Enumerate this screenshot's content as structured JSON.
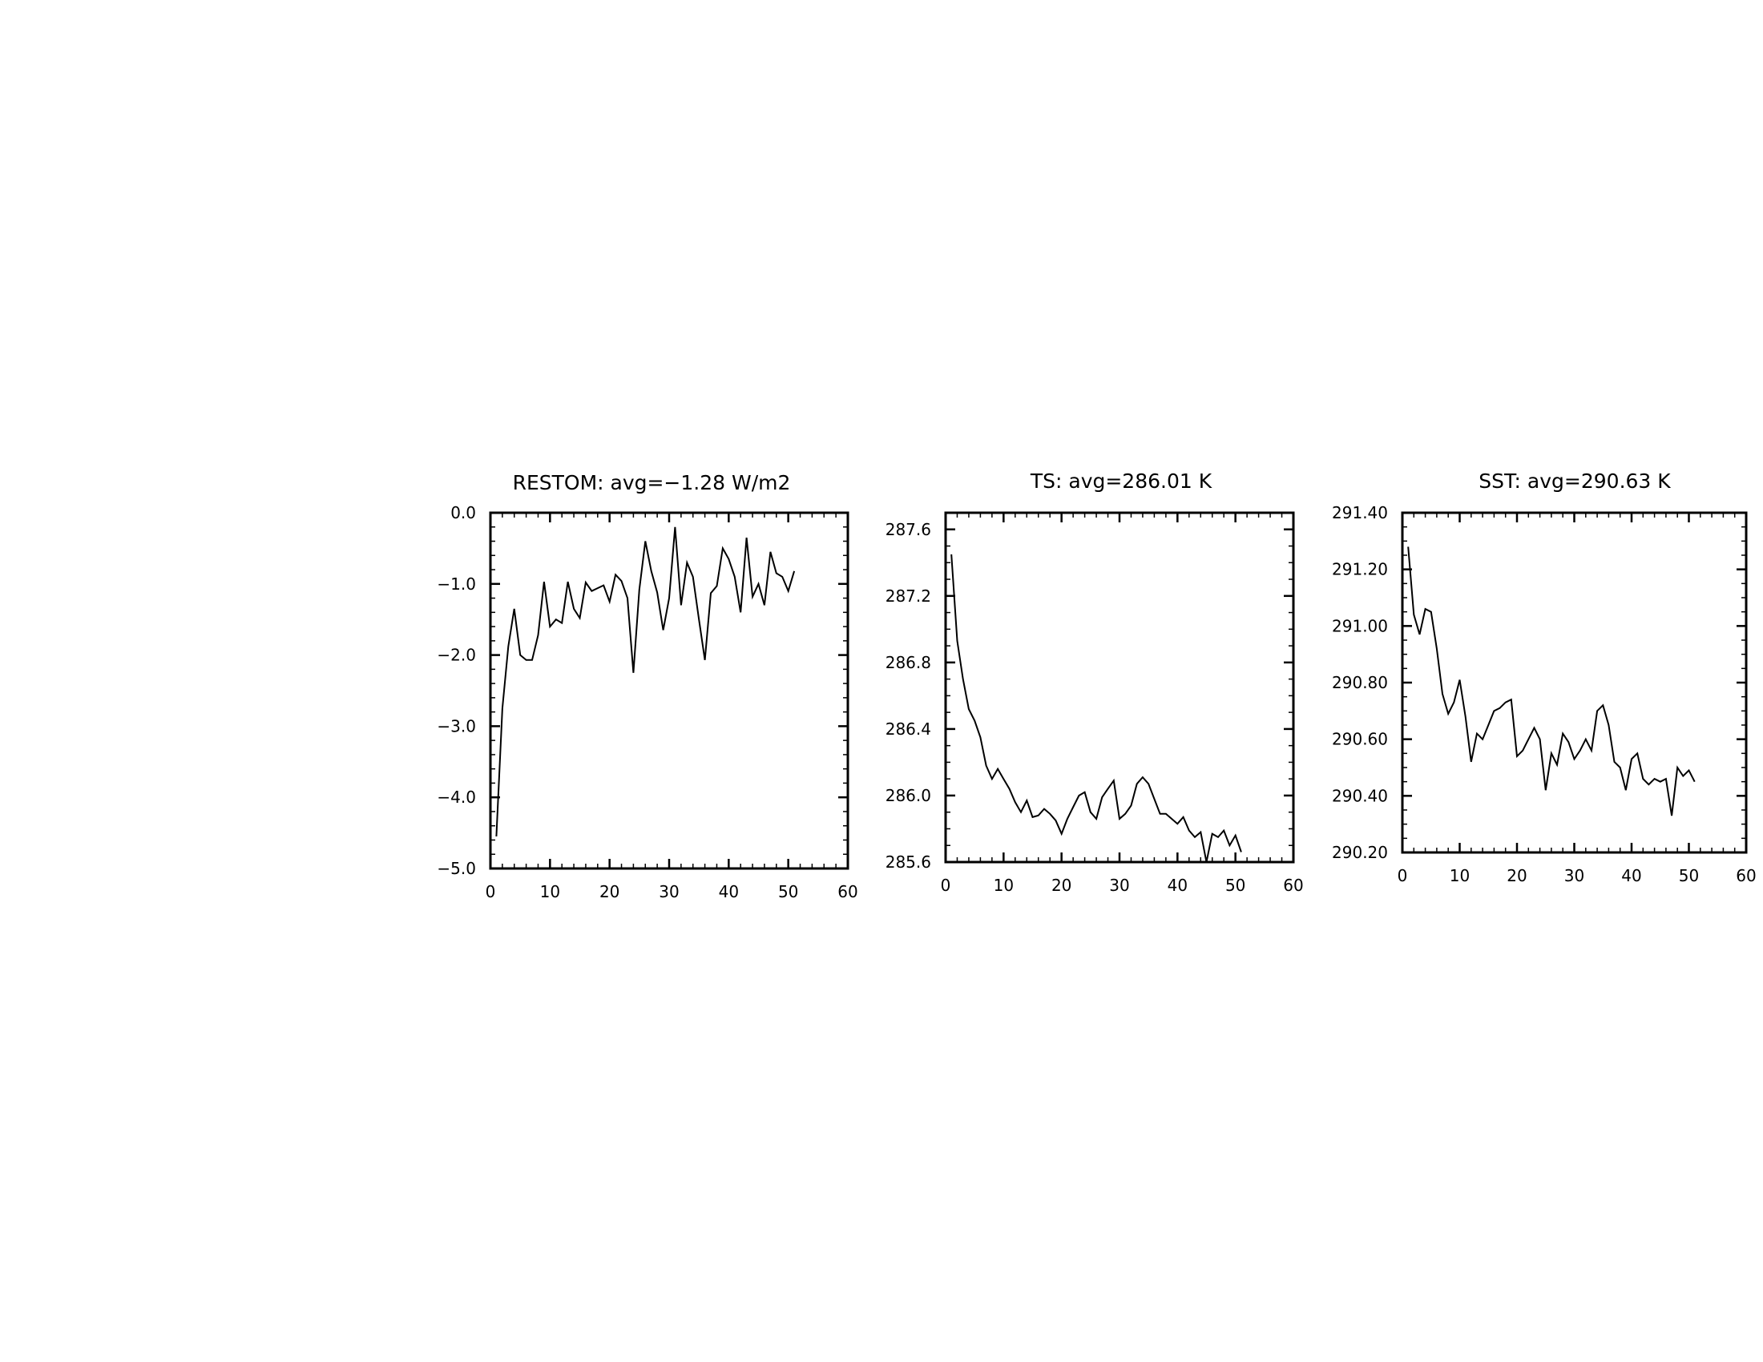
{
  "chart_data": [
    {
      "type": "line",
      "title": "RESTOM: avg=−1.28 W/m2",
      "xlabel": "",
      "ylabel": "",
      "xlim": [
        0,
        60
      ],
      "ylim": [
        -5.0,
        0.0
      ],
      "x_ticks": [
        "0",
        "10",
        "20",
        "30",
        "40",
        "50",
        "60"
      ],
      "y_ticks": [
        "−5.0",
        "−4.0",
        "−3.0",
        "−2.0",
        "−1.0",
        "0.0"
      ],
      "grid": false,
      "series": [
        {
          "x": [
            1,
            2,
            3,
            4,
            5,
            6,
            7,
            8,
            9,
            10,
            11,
            12,
            13,
            14,
            15,
            16,
            17,
            18,
            19,
            20,
            21,
            22,
            23,
            24,
            25,
            26,
            27,
            28,
            29,
            30,
            31,
            32,
            33,
            34,
            35,
            36,
            37,
            38,
            39,
            40,
            41,
            42,
            43,
            44,
            45,
            46,
            47,
            48,
            49,
            50,
            51
          ],
          "values": [
            -4.55,
            -2.75,
            -1.88,
            -1.35,
            -2.0,
            -2.07,
            -2.07,
            -1.72,
            -0.97,
            -1.6,
            -1.5,
            -1.55,
            -0.97,
            -1.35,
            -1.48,
            -0.98,
            -1.1,
            -1.06,
            -1.02,
            -1.25,
            -0.87,
            -0.96,
            -1.2,
            -2.25,
            -1.08,
            -0.4,
            -0.82,
            -1.12,
            -1.65,
            -1.2,
            -0.2,
            -1.3,
            -0.7,
            -0.9,
            -1.5,
            -2.07,
            -1.13,
            -1.03,
            -0.5,
            -0.65,
            -0.9,
            -1.4,
            -0.35,
            -1.18,
            -1.0,
            -1.3,
            -0.55,
            -0.85,
            -0.9,
            -1.1,
            -0.82
          ]
        }
      ]
    },
    {
      "type": "line",
      "title": "TS: avg=286.01 K",
      "xlabel": "",
      "ylabel": "",
      "xlim": [
        0,
        60
      ],
      "ylim": [
        285.6,
        287.7
      ],
      "x_ticks": [
        "0",
        "10",
        "20",
        "30",
        "40",
        "50",
        "60"
      ],
      "y_ticks": [
        "285.6",
        "286.0",
        "286.4",
        "286.8",
        "287.2",
        "287.6"
      ],
      "grid": false,
      "series": [
        {
          "x": [
            1,
            2,
            3,
            4,
            5,
            6,
            7,
            8,
            9,
            10,
            11,
            12,
            13,
            14,
            15,
            16,
            17,
            18,
            19,
            20,
            21,
            22,
            23,
            24,
            25,
            26,
            27,
            28,
            29,
            30,
            31,
            32,
            33,
            34,
            35,
            36,
            37,
            38,
            39,
            40,
            41,
            42,
            43,
            44,
            45,
            46,
            47,
            48,
            49,
            50,
            51
          ],
          "values": [
            287.45,
            286.93,
            286.7,
            286.52,
            286.45,
            286.35,
            286.18,
            286.1,
            286.16,
            286.1,
            286.04,
            285.96,
            285.9,
            285.97,
            285.87,
            285.88,
            285.92,
            285.89,
            285.85,
            285.77,
            285.86,
            285.93,
            286.0,
            286.02,
            285.9,
            285.86,
            285.99,
            286.04,
            286.09,
            285.86,
            285.89,
            285.94,
            286.07,
            286.11,
            286.07,
            285.98,
            285.89,
            285.89,
            285.86,
            285.83,
            285.87,
            285.79,
            285.75,
            285.78,
            285.6,
            285.77,
            285.75,
            285.79,
            285.7,
            285.76,
            285.66
          ]
        }
      ]
    },
    {
      "type": "line",
      "title": "SST: avg=290.63 K",
      "xlabel": "",
      "ylabel": "",
      "xlim": [
        0,
        60
      ],
      "ylim": [
        290.2,
        291.4
      ],
      "x_ticks": [
        "0",
        "10",
        "20",
        "30",
        "40",
        "50",
        "60"
      ],
      "y_ticks": [
        "290.20",
        "290.40",
        "290.60",
        "290.80",
        "291.00",
        "291.20",
        "291.40"
      ],
      "grid": false,
      "series": [
        {
          "x": [
            1,
            2,
            3,
            4,
            5,
            6,
            7,
            8,
            9,
            10,
            11,
            12,
            13,
            14,
            15,
            16,
            17,
            18,
            19,
            20,
            21,
            22,
            23,
            24,
            25,
            26,
            27,
            28,
            29,
            30,
            31,
            32,
            33,
            34,
            35,
            36,
            37,
            38,
            39,
            40,
            41,
            42,
            43,
            44,
            45,
            46,
            47,
            48,
            49,
            50,
            51
          ],
          "values": [
            291.28,
            291.04,
            290.97,
            291.06,
            291.05,
            290.92,
            290.76,
            290.69,
            290.73,
            290.81,
            290.68,
            290.52,
            290.62,
            290.6,
            290.65,
            290.7,
            290.71,
            290.73,
            290.74,
            290.54,
            290.56,
            290.6,
            290.64,
            290.6,
            290.42,
            290.55,
            290.51,
            290.62,
            290.59,
            290.53,
            290.56,
            290.6,
            290.56,
            290.7,
            290.72,
            290.65,
            290.52,
            290.5,
            290.42,
            290.53,
            290.55,
            290.46,
            290.44,
            290.46,
            290.45,
            290.46,
            290.33,
            290.5,
            290.47,
            290.49,
            290.45
          ]
        }
      ]
    }
  ]
}
